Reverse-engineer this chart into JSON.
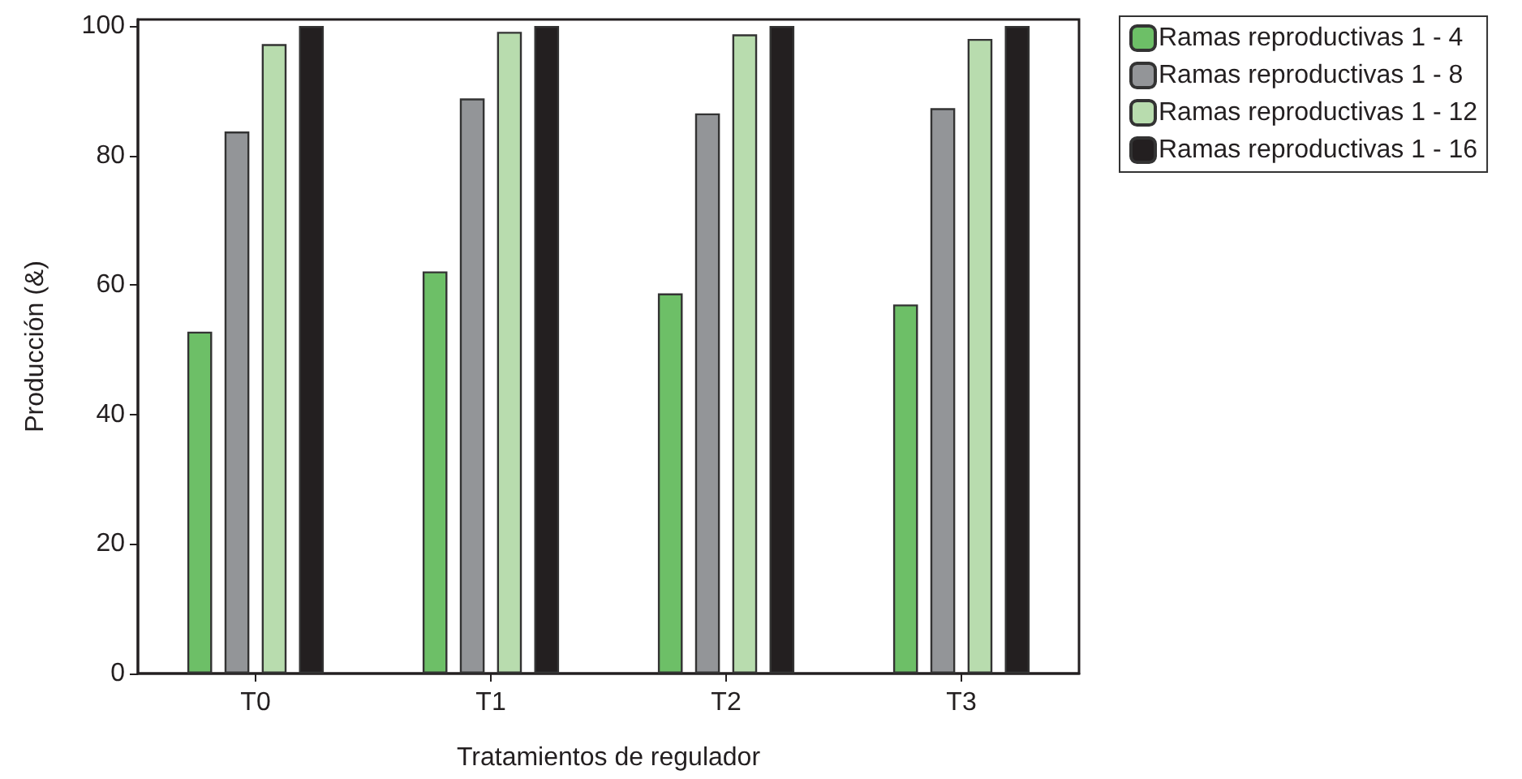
{
  "chart_data": {
    "type": "bar",
    "xlabel": "Tratamientos de regulador",
    "ylabel": "Producción (&)",
    "categories": [
      "T0",
      "T1",
      "T2",
      "T3"
    ],
    "series": [
      {
        "name": "Ramas reproductivas 1 - 4",
        "color": "#6dbf67",
        "values": [
          52.8,
          62.1,
          58.7,
          57.0
        ]
      },
      {
        "name": "Ramas reproductivas 1 - 8",
        "color": "#939598",
        "values": [
          83.7,
          88.8,
          86.5,
          87.3
        ]
      },
      {
        "name": "Ramas reproductivas 1 - 12",
        "color": "#b8dcae",
        "values": [
          97.2,
          99.1,
          98.7,
          98.0
        ]
      },
      {
        "name": "Ramas reproductivas 1 - 16",
        "color": "#231f20",
        "values": [
          100,
          100,
          100,
          100
        ]
      }
    ],
    "ylim": [
      0,
      101
    ],
    "yticks": [
      0,
      20,
      40,
      60,
      80,
      100
    ],
    "grid": false,
    "legend": "top right"
  }
}
